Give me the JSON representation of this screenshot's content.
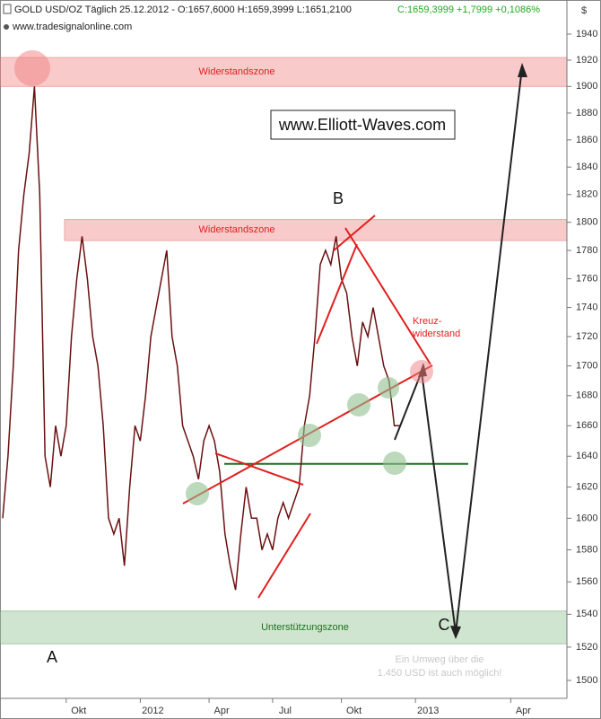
{
  "chart_data": {
    "type": "line",
    "title": "GOLD USD/OZ Täglich  25.12.2012 - O:1657,6000 H:1659,3999 L:1651,2100",
    "subtitle": "C:1659,3999 +1,7999 +0,1086%",
    "source": "www.tradesignalonline.com",
    "watermark": "www.Elliott-Waves.com",
    "y_unit": "$",
    "log_scale": true,
    "ylim": [
      1490,
      1950
    ],
    "yticks": [
      1500,
      1520,
      1540,
      1560,
      1580,
      1600,
      1620,
      1640,
      1660,
      1680,
      1700,
      1720,
      1740,
      1760,
      1780,
      1800,
      1820,
      1840,
      1860,
      1880,
      1900,
      1920,
      1940
    ],
    "categories": [
      null,
      null,
      null,
      null,
      null,
      null,
      null,
      null,
      null,
      null,
      null,
      null,
      "Okt",
      null,
      null,
      null,
      null,
      null,
      null,
      null,
      null,
      null,
      null,
      null,
      null,
      null,
      "2012",
      null,
      null,
      null,
      null,
      null,
      null,
      null,
      null,
      null,
      null,
      null,
      null,
      "Apr",
      null,
      null,
      null,
      null,
      null,
      null,
      null,
      null,
      null,
      null,
      null,
      "Jul",
      null,
      null,
      null,
      null,
      null,
      null,
      null,
      null,
      null,
      null,
      null,
      null,
      "Okt",
      null,
      null,
      null,
      null,
      null,
      null,
      null,
      null,
      null,
      null,
      null,
      null,
      null,
      "2013",
      null,
      null,
      null,
      null,
      null,
      null,
      null,
      null,
      null,
      null,
      null,
      null,
      null,
      null,
      null,
      null,
      null,
      "Apr",
      null,
      null,
      null,
      null,
      null,
      null,
      null,
      null,
      null,
      null
    ],
    "series": [
      {
        "name": "GOLD USD/OZ",
        "color": "#6b1010",
        "values": [
          1600,
          1640,
          1700,
          1780,
          1820,
          1850,
          1900,
          1820,
          1640,
          1620,
          1660,
          1640,
          1660,
          1720,
          1760,
          1790,
          1760,
          1720,
          1700,
          1660,
          1600,
          1590,
          1600,
          1570,
          1620,
          1660,
          1650,
          1680,
          1720,
          1740,
          1760,
          1780,
          1720,
          1700,
          1660,
          1650,
          1640,
          1625,
          1650,
          1660,
          1650,
          1630,
          1590,
          1570,
          1555,
          1590,
          1620,
          1600,
          1600,
          1580,
          1590,
          1580,
          1600,
          1610,
          1600,
          1610,
          1620,
          1660,
          1680,
          1720,
          1770,
          1780,
          1770,
          1790,
          1760,
          1750,
          1720,
          1700,
          1730,
          1720,
          1740,
          1720,
          1700,
          1690,
          1660,
          1660,
          null,
          null,
          null,
          null,
          null,
          null,
          null,
          null,
          null,
          null,
          null,
          null,
          null,
          null,
          null,
          null,
          null,
          null,
          null,
          null,
          null,
          null,
          null,
          null,
          null,
          null,
          null,
          null,
          null,
          null,
          null
        ]
      }
    ],
    "zones": [
      {
        "label": "Widerstandszone",
        "low": 1900,
        "high": 1922,
        "color": "#f4a0a0"
      },
      {
        "label": "Widerstandszone",
        "low": 1787,
        "high": 1802,
        "color": "#f4a0a0"
      },
      {
        "label": "Unterstützungszone",
        "low": 1522,
        "high": 1542,
        "color": "#a8d0a8"
      }
    ],
    "support_line": 1635,
    "wave_labels": [
      "A",
      "B",
      "C"
    ],
    "annotation_cross": [
      "Kreuz-",
      "widerstand"
    ],
    "annotation_note": [
      "Ein Umweg über die",
      "1.450 USD ist auch möglich!"
    ]
  }
}
